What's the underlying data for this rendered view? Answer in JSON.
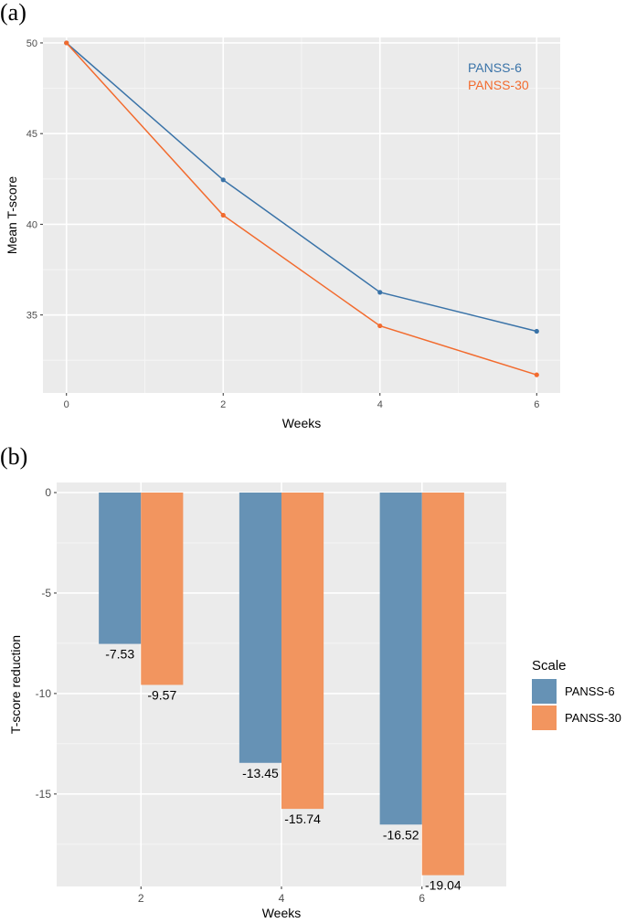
{
  "chart_data": [
    {
      "panel_label": "(a)",
      "type": "line",
      "x": [
        0,
        2,
        4,
        6
      ],
      "xticks": [
        "0",
        "2",
        "4",
        "6"
      ],
      "xlim": [
        -0.3,
        6.3
      ],
      "ylim": [
        30.7,
        50.3
      ],
      "yticks": [
        "35",
        "40",
        "45",
        "50"
      ],
      "ytick_values": [
        35,
        40,
        45,
        50
      ],
      "xlabel": "Weeks",
      "ylabel": "Mean T-score",
      "grid": true,
      "legend_position": "top-right",
      "series": [
        {
          "name": "PANSS-6",
          "color": "#3a73a8",
          "values": [
            50,
            42.45,
            36.25,
            34.1
          ]
        },
        {
          "name": "PANSS-30",
          "color": "#f26b2e",
          "values": [
            50,
            40.5,
            34.4,
            31.7
          ]
        }
      ]
    },
    {
      "panel_label": "(b)",
      "type": "bar",
      "categories": [
        "2",
        "4",
        "6"
      ],
      "ylim": [
        -19.6,
        0.5
      ],
      "yticks": [
        "0",
        "-5",
        "-10",
        "-15"
      ],
      "ytick_values": [
        0,
        -5,
        -10,
        -15
      ],
      "xlabel": "Weeks",
      "ylabel": "T-score reduction",
      "grid": true,
      "legend_title": "Scale",
      "legend_position": "right",
      "series": [
        {
          "name": "PANSS-6",
          "color": "#6692b5",
          "values": [
            -7.53,
            -13.45,
            -16.52
          ],
          "labels": [
            "-7.53",
            "-13.45",
            "-16.52"
          ]
        },
        {
          "name": "PANSS-30",
          "color": "#f2955f",
          "values": [
            -9.57,
            -15.74,
            -19.04
          ],
          "labels": [
            "-9.57",
            "-15.74",
            "-19.04"
          ]
        }
      ]
    }
  ]
}
